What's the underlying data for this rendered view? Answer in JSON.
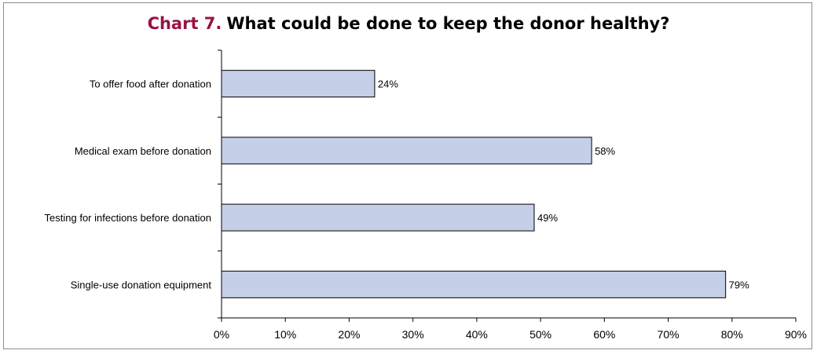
{
  "chart_data": {
    "type": "bar",
    "orientation": "horizontal",
    "title_prefix": "Chart 7.",
    "title": "What could be done to keep the donor healthy?",
    "categories": [
      "To offer food after donation",
      "Medical exam before donation",
      "Testing for infections before donation",
      "Single-use donation equipment"
    ],
    "values": [
      24,
      58,
      49,
      79
    ],
    "data_labels": [
      "24%",
      "58%",
      "49%",
      "79%"
    ],
    "x_ticks": [
      "0%",
      "10%",
      "20%",
      "30%",
      "40%",
      "50%",
      "60%",
      "70%",
      "80%",
      "90%"
    ],
    "xlim": [
      0,
      90
    ],
    "grid": false,
    "colors": {
      "bar_fill": "#c5cfe8",
      "bar_stroke": "#000000",
      "title_prefix": "#9b1145"
    }
  }
}
